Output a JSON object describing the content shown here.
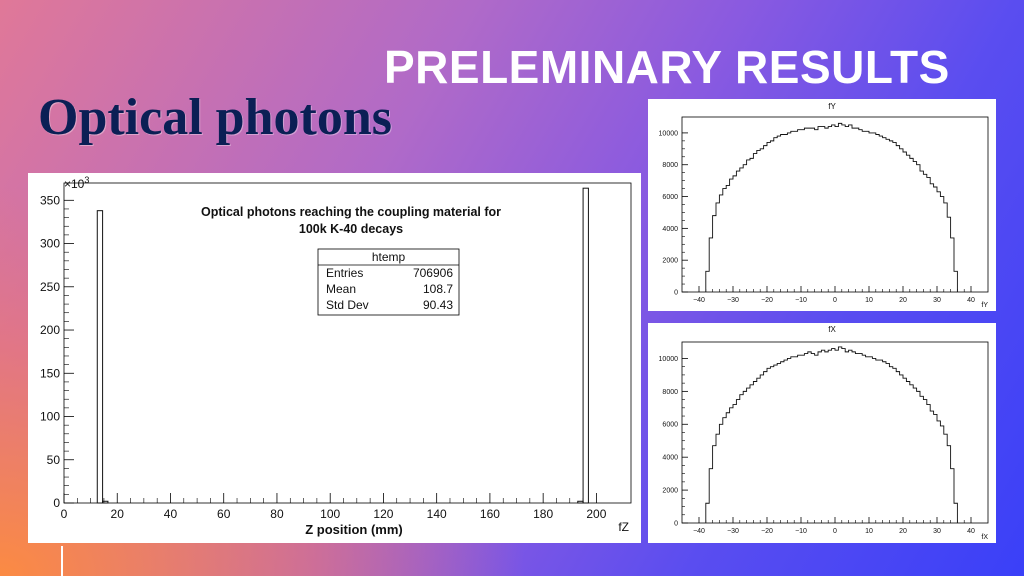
{
  "slide": {
    "title": "PRELEMINARY RESULTS",
    "subtitle": "Optical photons"
  },
  "colors": {
    "subtitle": "#0b1f55",
    "histogram_line": "#111111"
  },
  "chart_data": [
    {
      "type": "bar",
      "title": "Optical photons reaching the coupling material for 100k K-40 decays",
      "title_lines": [
        "Optical photons reaching the coupling material for",
        "100k K-40 decays"
      ],
      "xlabel": "Z position (mm)",
      "axis_name": "fZ",
      "ylabel": "",
      "y_multiplier": "×10",
      "y_multiplier_exp": "3",
      "xlim": [
        0,
        213
      ],
      "ylim": [
        0,
        370
      ],
      "x_ticks": [
        0,
        20,
        40,
        60,
        80,
        100,
        120,
        140,
        160,
        180,
        200
      ],
      "y_ticks": [
        0,
        50,
        100,
        150,
        200,
        250,
        300,
        350
      ],
      "bins": [
        {
          "x0": 12.5,
          "x1": 14.5,
          "value": 338
        },
        {
          "x0": 14.5,
          "x1": 16.5,
          "value": 2
        },
        {
          "x0": 193,
          "x1": 195,
          "value": 2
        },
        {
          "x0": 195,
          "x1": 197,
          "value": 364
        }
      ],
      "stats_box": {
        "name": "htemp",
        "rows": [
          {
            "label": "Entries",
            "value": "706906"
          },
          {
            "label": "Mean",
            "value": "108.7"
          },
          {
            "label": "Std Dev",
            "value": "90.43"
          }
        ]
      }
    },
    {
      "type": "bar",
      "title": "fY",
      "axis_name": "fY",
      "xlim": [
        -45,
        45
      ],
      "ylim": [
        0,
        11000
      ],
      "x_ticks": [
        -40,
        -30,
        -20,
        -10,
        0,
        10,
        20,
        30,
        40
      ],
      "y_ticks": [
        0,
        2000,
        4000,
        6000,
        8000,
        10000
      ],
      "bin_start": -38,
      "bin_width": 1,
      "values": [
        1300,
        3400,
        4800,
        5600,
        6100,
        6500,
        6700,
        7100,
        7300,
        7600,
        7800,
        8000,
        8300,
        8400,
        8700,
        8900,
        9000,
        9200,
        9400,
        9500,
        9700,
        9800,
        9900,
        9900,
        10000,
        10100,
        10100,
        10200,
        10200,
        10300,
        10300,
        10300,
        10200,
        10400,
        10400,
        10300,
        10400,
        10500,
        10400,
        10600,
        10500,
        10400,
        10500,
        10300,
        10300,
        10200,
        10100,
        10100,
        10000,
        10000,
        9900,
        9800,
        9700,
        9600,
        9500,
        9400,
        9200,
        9000,
        8800,
        8600,
        8400,
        8200,
        8000,
        7600,
        7400,
        7200,
        6800,
        6600,
        6300,
        6000,
        5600,
        4700,
        3400,
        1300
      ]
    },
    {
      "type": "bar",
      "title": "fX",
      "axis_name": "fX",
      "xlim": [
        -45,
        45
      ],
      "ylim": [
        0,
        11000
      ],
      "x_ticks": [
        -40,
        -30,
        -20,
        -10,
        0,
        10,
        20,
        30,
        40
      ],
      "y_ticks": [
        0,
        2000,
        4000,
        6000,
        8000,
        10000
      ],
      "bin_start": -38,
      "bin_width": 1,
      "values": [
        1200,
        3300,
        4700,
        5400,
        6000,
        6400,
        6700,
        7000,
        7200,
        7500,
        7800,
        8000,
        8200,
        8400,
        8600,
        8800,
        9000,
        9200,
        9400,
        9500,
        9600,
        9700,
        9800,
        9900,
        10000,
        10100,
        10100,
        10200,
        10200,
        10300,
        10400,
        10300,
        10200,
        10400,
        10500,
        10400,
        10500,
        10600,
        10500,
        10700,
        10600,
        10400,
        10500,
        10400,
        10300,
        10300,
        10200,
        10100,
        10100,
        10000,
        9900,
        9900,
        9800,
        9700,
        9500,
        9400,
        9200,
        9000,
        8800,
        8600,
        8400,
        8200,
        8000,
        7700,
        7500,
        7200,
        6800,
        6600,
        6200,
        5900,
        5400,
        4700,
        3300,
        1200
      ]
    }
  ]
}
